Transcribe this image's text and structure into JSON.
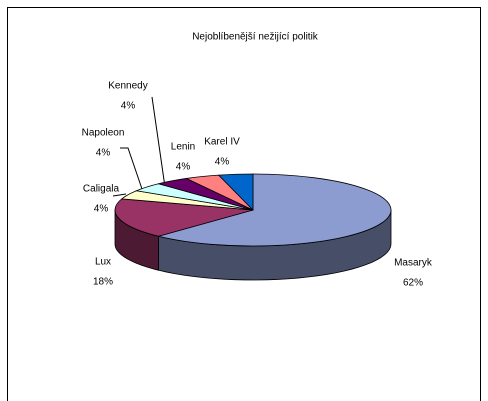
{
  "chart_data": {
    "type": "pie3d",
    "title": "Nejoblíbenější nežijící politik",
    "categories": [
      "Masaryk",
      "Lux",
      "Caligala",
      "Napoleon",
      "Kennedy",
      "Lenin",
      "Karel IV"
    ],
    "values": [
      62,
      18,
      4,
      4,
      4,
      4,
      4
    ],
    "value_labels": [
      "62%",
      "18%",
      "4%",
      "4%",
      "4%",
      "4%",
      "4%"
    ],
    "colors": [
      "#8c9bd0",
      "#993366",
      "#ffffcc",
      "#ccffff",
      "#660066",
      "#ff8080",
      "#0066cc"
    ]
  }
}
